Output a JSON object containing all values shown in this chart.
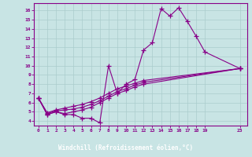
{
  "xlabel": "Windchill (Refroidissement éolien,°C)",
  "background_color": "#c8e4e4",
  "line_color": "#880088",
  "grid_color": "#b8d8d8",
  "axis_bar_color": "#660066",
  "xlim": [
    -0.5,
    23.8
  ],
  "ylim": [
    3.5,
    16.8
  ],
  "xticks": [
    0,
    1,
    2,
    3,
    4,
    5,
    6,
    7,
    8,
    9,
    10,
    11,
    12,
    13,
    14,
    15,
    16,
    17,
    18,
    19,
    23
  ],
  "yticks": [
    4,
    5,
    6,
    7,
    8,
    9,
    10,
    11,
    12,
    13,
    14,
    15,
    16
  ],
  "series1": [
    [
      0,
      6.5
    ],
    [
      1,
      4.7
    ],
    [
      2,
      5.0
    ],
    [
      3,
      4.7
    ],
    [
      4,
      4.7
    ],
    [
      5,
      4.3
    ],
    [
      6,
      4.3
    ],
    [
      7,
      3.8
    ],
    [
      8,
      10.0
    ],
    [
      9,
      7.0
    ],
    [
      10,
      8.0
    ],
    [
      11,
      8.5
    ],
    [
      12,
      11.7
    ],
    [
      13,
      12.5
    ],
    [
      14,
      16.2
    ],
    [
      15,
      15.4
    ],
    [
      16,
      16.3
    ],
    [
      17,
      14.8
    ],
    [
      18,
      13.2
    ],
    [
      19,
      11.5
    ],
    [
      23,
      9.7
    ]
  ],
  "series2": [
    [
      0,
      6.5
    ],
    [
      1,
      4.7
    ],
    [
      2,
      5.0
    ],
    [
      3,
      4.8
    ],
    [
      4,
      5.0
    ],
    [
      5,
      5.2
    ],
    [
      6,
      5.5
    ],
    [
      7,
      6.0
    ],
    [
      8,
      6.5
    ],
    [
      9,
      7.0
    ],
    [
      10,
      7.3
    ],
    [
      11,
      7.7
    ],
    [
      12,
      8.0
    ],
    [
      23,
      9.7
    ]
  ],
  "series3": [
    [
      0,
      6.5
    ],
    [
      1,
      4.8
    ],
    [
      2,
      5.1
    ],
    [
      3,
      5.2
    ],
    [
      4,
      5.3
    ],
    [
      5,
      5.5
    ],
    [
      6,
      5.8
    ],
    [
      7,
      6.2
    ],
    [
      8,
      6.7
    ],
    [
      9,
      7.2
    ],
    [
      10,
      7.5
    ],
    [
      11,
      7.9
    ],
    [
      12,
      8.2
    ],
    [
      23,
      9.7
    ]
  ],
  "series4": [
    [
      0,
      6.5
    ],
    [
      1,
      4.9
    ],
    [
      2,
      5.2
    ],
    [
      3,
      5.4
    ],
    [
      4,
      5.6
    ],
    [
      5,
      5.8
    ],
    [
      6,
      6.1
    ],
    [
      7,
      6.5
    ],
    [
      8,
      7.0
    ],
    [
      9,
      7.5
    ],
    [
      10,
      7.8
    ],
    [
      11,
      8.1
    ],
    [
      12,
      8.4
    ],
    [
      23,
      9.7
    ]
  ]
}
